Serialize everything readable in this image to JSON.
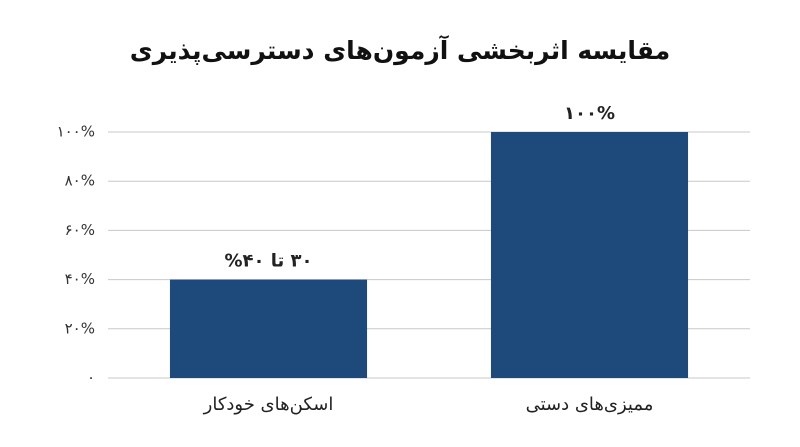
{
  "chart_data": {
    "type": "bar",
    "title": "مقایسه اثربخشی آزمون‌های دسترسی‌پذیری",
    "categories": [
      "اسکن‌های خودکار",
      "ممیزی‌های دستی"
    ],
    "values": [
      40,
      100
    ],
    "value_labels": [
      "۳۰ تا ۴۰%",
      "۱۰۰%"
    ],
    "color": "#1d4a7a",
    "ylim": [
      0,
      100
    ],
    "yticks": [
      {
        "value": 0,
        "label": "۰"
      },
      {
        "value": 20,
        "label": "۲۰%"
      },
      {
        "value": 40,
        "label": "۴۰%"
      },
      {
        "value": 60,
        "label": "۶۰%"
      },
      {
        "value": 80,
        "label": "۸۰%"
      },
      {
        "value": 100,
        "label": "۱۰۰%"
      }
    ],
    "grid": true
  }
}
